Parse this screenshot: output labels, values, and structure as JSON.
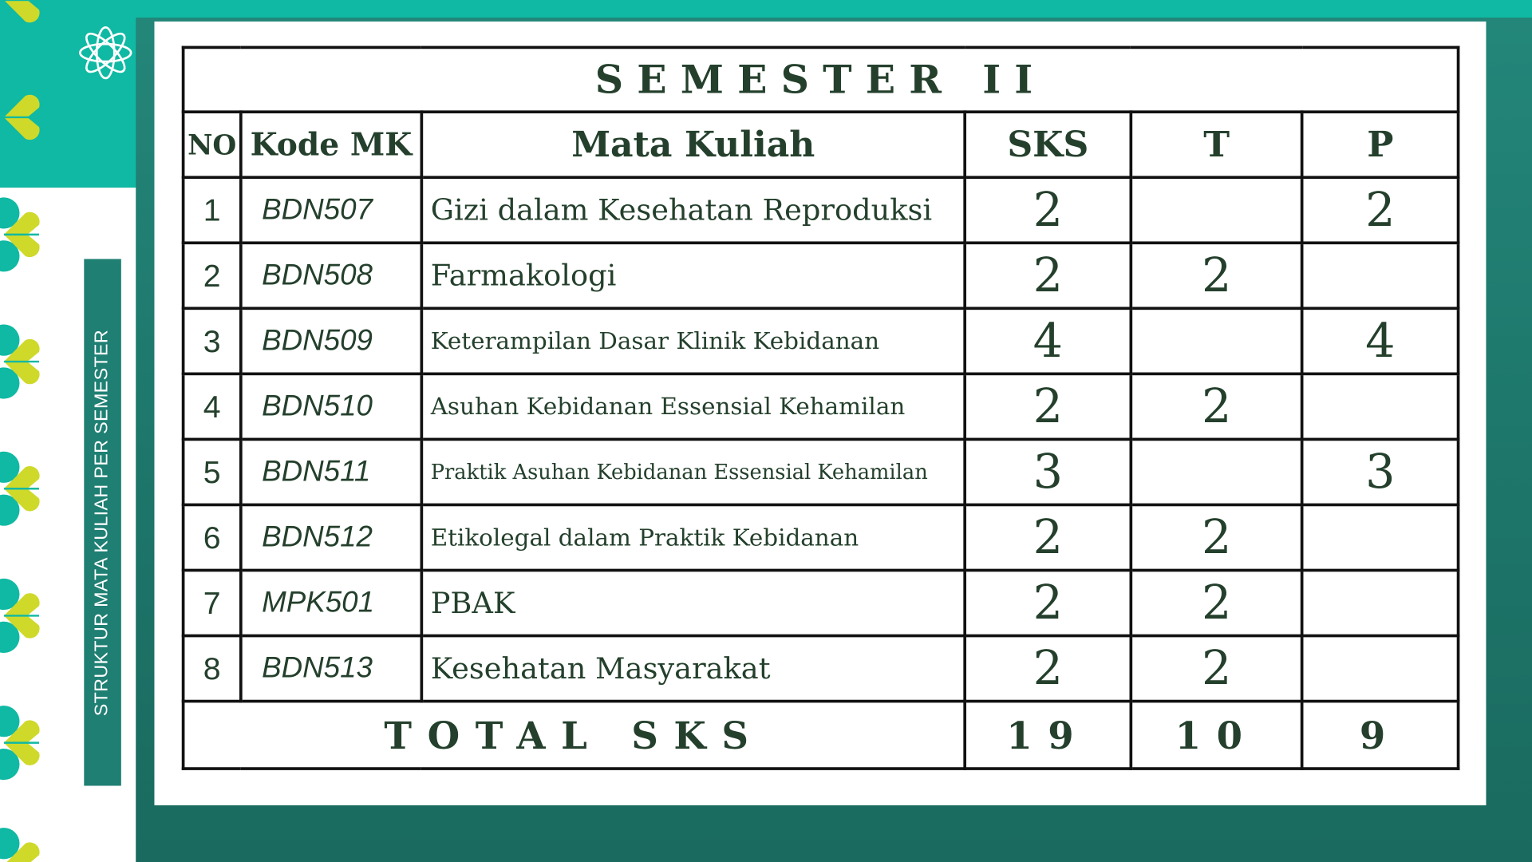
{
  "side_label": "STRUKTUR MATA KULIAH PER SEMESTER",
  "table": {
    "title": "SEMESTER II",
    "headers": {
      "no": "NO",
      "kode": "Kode MK",
      "mk": "Mata Kuliah",
      "sks": "SKS",
      "t": "T",
      "p": "P"
    },
    "rows": [
      {
        "no": "1",
        "kode": "BDN507",
        "mk": "Gizi dalam Kesehatan Reproduksi",
        "sks": "2",
        "t": "",
        "p": "2"
      },
      {
        "no": "2",
        "kode": "BDN508",
        "mk": "Farmakologi",
        "sks": "2",
        "t": "2",
        "p": ""
      },
      {
        "no": "3",
        "kode": "BDN509",
        "mk": "Keterampilan Dasar Klinik Kebidanan",
        "sks": "4",
        "t": "",
        "p": "4"
      },
      {
        "no": "4",
        "kode": "BDN510",
        "mk": "Asuhan Kebidanan Essensial Kehamilan",
        "sks": "2",
        "t": "2",
        "p": ""
      },
      {
        "no": "5",
        "kode": "BDN511",
        "mk": "Praktik Asuhan Kebidanan Essensial Kehamilan",
        "sks": "3",
        "t": "",
        "p": "3"
      },
      {
        "no": "6",
        "kode": "BDN512",
        "mk": "Etikolegal dalam Praktik Kebidanan",
        "sks": "2",
        "t": "2",
        "p": ""
      },
      {
        "no": "7",
        "kode": "MPK501",
        "mk": "PBAK",
        "sks": "2",
        "t": "2",
        "p": ""
      },
      {
        "no": "8",
        "kode": "BDN513",
        "mk": "Kesehatan Masyarakat",
        "sks": "2",
        "t": "2",
        "p": ""
      }
    ],
    "total": {
      "label": "TOTAL SKS",
      "sks": "19",
      "t": "10",
      "p": "9"
    }
  },
  "colors": {
    "teal": "#0fb9a3",
    "dark_teal": "#1f7f73",
    "lime": "#cfd92a",
    "text": "#24402c"
  },
  "icons": [
    "flower-outline-icon",
    "clover-heart-icon"
  ]
}
